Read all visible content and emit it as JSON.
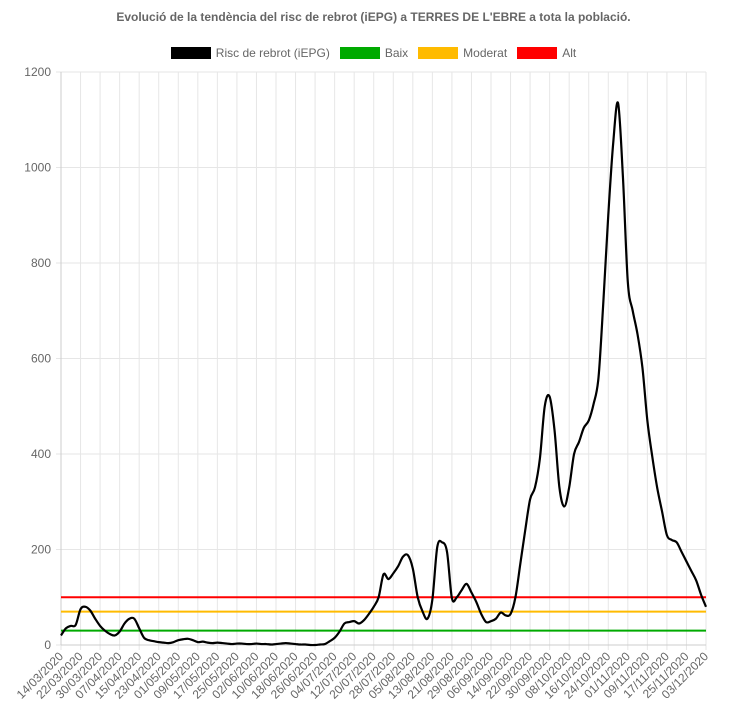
{
  "chart_data": {
    "type": "line",
    "title": "Evolució de la tendència del risc de rebrot (iEPG) a TERRES DE L'EBRE a tota la població.",
    "xlabel": "",
    "ylabel": "",
    "ylim": [
      0,
      1200
    ],
    "yticks": [
      0,
      200,
      400,
      600,
      800,
      1000,
      1200
    ],
    "grid": true,
    "legend_position": "top",
    "x_start": "14/03/2020",
    "x_end": "03/12/2020",
    "xtick_labels": [
      "14/03/2020",
      "22/03/2020",
      "30/03/2020",
      "07/04/2020",
      "15/04/2020",
      "23/04/2020",
      "01/05/2020",
      "09/05/2020",
      "17/05/2020",
      "25/05/2020",
      "02/06/2020",
      "10/06/2020",
      "18/06/2020",
      "26/06/2020",
      "04/07/2020",
      "12/07/2020",
      "20/07/2020",
      "28/07/2020",
      "05/08/2020",
      "13/08/2020",
      "21/08/2020",
      "29/08/2020",
      "06/09/2020",
      "14/09/2020",
      "22/09/2020",
      "30/09/2020",
      "08/10/2020",
      "16/10/2020",
      "24/10/2020",
      "01/11/2020",
      "09/11/2020",
      "17/11/2020",
      "25/11/2020",
      "03/12/2020"
    ],
    "series": [
      {
        "name": "Risc de rebrot (iEPG)",
        "color": "#000000",
        "points": [
          [
            "14/03/2020",
            20
          ],
          [
            "16/03/2020",
            35
          ],
          [
            "18/03/2020",
            40
          ],
          [
            "20/03/2020",
            42
          ],
          [
            "22/03/2020",
            75
          ],
          [
            "24/03/2020",
            80
          ],
          [
            "26/03/2020",
            72
          ],
          [
            "28/03/2020",
            55
          ],
          [
            "30/03/2020",
            40
          ],
          [
            "01/04/2020",
            30
          ],
          [
            "03/04/2020",
            23
          ],
          [
            "05/04/2020",
            20
          ],
          [
            "07/04/2020",
            28
          ],
          [
            "09/04/2020",
            45
          ],
          [
            "11/04/2020",
            55
          ],
          [
            "13/04/2020",
            55
          ],
          [
            "15/04/2020",
            35
          ],
          [
            "17/04/2020",
            15
          ],
          [
            "19/04/2020",
            10
          ],
          [
            "21/04/2020",
            8
          ],
          [
            "23/04/2020",
            6
          ],
          [
            "25/04/2020",
            5
          ],
          [
            "27/04/2020",
            4
          ],
          [
            "29/04/2020",
            6
          ],
          [
            "01/05/2020",
            10
          ],
          [
            "03/05/2020",
            12
          ],
          [
            "05/05/2020",
            13
          ],
          [
            "07/05/2020",
            10
          ],
          [
            "09/05/2020",
            6
          ],
          [
            "11/05/2020",
            7
          ],
          [
            "13/05/2020",
            5
          ],
          [
            "15/05/2020",
            4
          ],
          [
            "17/05/2020",
            5
          ],
          [
            "19/05/2020",
            4
          ],
          [
            "21/05/2020",
            3
          ],
          [
            "23/05/2020",
            2
          ],
          [
            "25/05/2020",
            3
          ],
          [
            "27/05/2020",
            3
          ],
          [
            "29/05/2020",
            2
          ],
          [
            "31/05/2020",
            2
          ],
          [
            "02/06/2020",
            3
          ],
          [
            "04/06/2020",
            2
          ],
          [
            "06/06/2020",
            2
          ],
          [
            "08/06/2020",
            1
          ],
          [
            "10/06/2020",
            2
          ],
          [
            "12/06/2020",
            3
          ],
          [
            "14/06/2020",
            4
          ],
          [
            "16/06/2020",
            3
          ],
          [
            "18/06/2020",
            2
          ],
          [
            "20/06/2020",
            1
          ],
          [
            "22/06/2020",
            1
          ],
          [
            "24/06/2020",
            0
          ],
          [
            "26/06/2020",
            0
          ],
          [
            "28/06/2020",
            1
          ],
          [
            "30/06/2020",
            2
          ],
          [
            "02/07/2020",
            8
          ],
          [
            "04/07/2020",
            15
          ],
          [
            "06/07/2020",
            28
          ],
          [
            "08/07/2020",
            45
          ],
          [
            "10/07/2020",
            48
          ],
          [
            "12/07/2020",
            50
          ],
          [
            "14/07/2020",
            45
          ],
          [
            "16/07/2020",
            52
          ],
          [
            "18/07/2020",
            65
          ],
          [
            "20/07/2020",
            80
          ],
          [
            "22/07/2020",
            100
          ],
          [
            "24/07/2020",
            148
          ],
          [
            "26/07/2020",
            138
          ],
          [
            "28/07/2020",
            150
          ],
          [
            "30/07/2020",
            165
          ],
          [
            "01/08/2020",
            185
          ],
          [
            "03/08/2020",
            188
          ],
          [
            "05/08/2020",
            160
          ],
          [
            "07/08/2020",
            100
          ],
          [
            "09/08/2020",
            70
          ],
          [
            "11/08/2020",
            55
          ],
          [
            "13/08/2020",
            95
          ],
          [
            "15/08/2020",
            205
          ],
          [
            "17/08/2020",
            215
          ],
          [
            "19/08/2020",
            195
          ],
          [
            "21/08/2020",
            98
          ],
          [
            "23/08/2020",
            100
          ],
          [
            "25/08/2020",
            115
          ],
          [
            "27/08/2020",
            128
          ],
          [
            "29/08/2020",
            110
          ],
          [
            "31/08/2020",
            90
          ],
          [
            "02/09/2020",
            65
          ],
          [
            "04/09/2020",
            48
          ],
          [
            "06/09/2020",
            50
          ],
          [
            "08/09/2020",
            55
          ],
          [
            "10/09/2020",
            68
          ],
          [
            "12/09/2020",
            62
          ],
          [
            "14/09/2020",
            65
          ],
          [
            "16/09/2020",
            100
          ],
          [
            "18/09/2020",
            170
          ],
          [
            "20/09/2020",
            240
          ],
          [
            "22/09/2020",
            305
          ],
          [
            "24/09/2020",
            330
          ],
          [
            "26/09/2020",
            390
          ],
          [
            "28/09/2020",
            500
          ],
          [
            "30/09/2020",
            520
          ],
          [
            "02/10/2020",
            450
          ],
          [
            "04/10/2020",
            330
          ],
          [
            "06/10/2020",
            290
          ],
          [
            "08/10/2020",
            330
          ],
          [
            "10/10/2020",
            400
          ],
          [
            "12/10/2020",
            425
          ],
          [
            "14/10/2020",
            455
          ],
          [
            "16/10/2020",
            470
          ],
          [
            "18/10/2020",
            505
          ],
          [
            "20/10/2020",
            560
          ],
          [
            "22/10/2020",
            720
          ],
          [
            "24/10/2020",
            900
          ],
          [
            "26/10/2020",
            1050
          ],
          [
            "28/10/2020",
            1135
          ],
          [
            "30/10/2020",
            980
          ],
          [
            "01/11/2020",
            760
          ],
          [
            "03/11/2020",
            700
          ],
          [
            "05/11/2020",
            650
          ],
          [
            "07/11/2020",
            580
          ],
          [
            "09/11/2020",
            470
          ],
          [
            "11/11/2020",
            395
          ],
          [
            "13/11/2020",
            330
          ],
          [
            "15/11/2020",
            280
          ],
          [
            "17/11/2020",
            230
          ],
          [
            "19/11/2020",
            220
          ],
          [
            "21/11/2020",
            215
          ],
          [
            "23/11/2020",
            195
          ],
          [
            "25/11/2020",
            175
          ],
          [
            "27/11/2020",
            155
          ],
          [
            "29/11/2020",
            135
          ],
          [
            "01/12/2020",
            105
          ],
          [
            "03/12/2020",
            80
          ]
        ]
      },
      {
        "name": "Baix",
        "color": "#00aa00",
        "constant": 30
      },
      {
        "name": "Moderat",
        "color": "#ffbb00",
        "constant": 70
      },
      {
        "name": "Alt",
        "color": "#ff0000",
        "constant": 100
      }
    ]
  }
}
